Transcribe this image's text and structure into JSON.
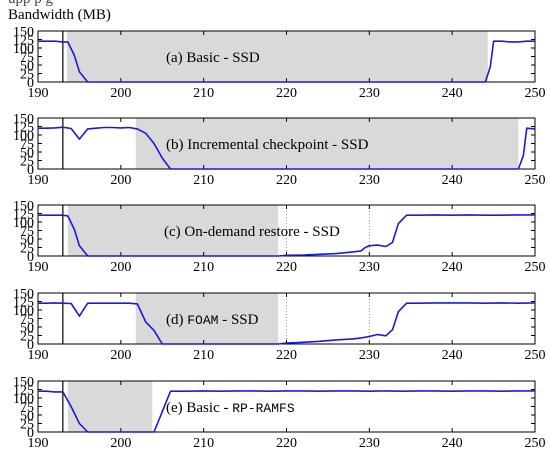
{
  "header_fragment": "upp                       p         g",
  "y_axis_label": "Bandwidth (MB)",
  "colors": {
    "line": "#1a1adf",
    "shade": "#d9d9d9",
    "axis": "#000000",
    "grid": "#999999"
  },
  "chart_data": [
    {
      "type": "line",
      "label_text": "(a) Basic - SSD",
      "label_mono": "",
      "label_suffix": "",
      "xlim": [
        190,
        250
      ],
      "ylim": [
        0,
        150
      ],
      "xticks": [
        190,
        200,
        210,
        220,
        230,
        240,
        250
      ],
      "yticks": [
        0,
        25,
        50,
        75,
        100,
        125,
        150
      ],
      "marker_x": 193,
      "shade": [
        193.5,
        244.3
      ],
      "x": [
        190,
        191,
        192,
        193,
        193.6,
        194.4,
        195,
        196,
        244,
        244.6,
        245,
        246,
        247,
        248,
        249,
        250
      ],
      "y": [
        120,
        120,
        120,
        118,
        118,
        78,
        30,
        0,
        0,
        45,
        120,
        120,
        118,
        118,
        120,
        120
      ]
    },
    {
      "type": "line",
      "label_text": "(b) Incremental checkpoint - SSD",
      "label_mono": "",
      "label_suffix": "",
      "xlim": [
        190,
        250
      ],
      "ylim": [
        0,
        150
      ],
      "xticks": [
        190,
        200,
        210,
        220,
        230,
        240,
        250
      ],
      "yticks": [
        0,
        25,
        50,
        75,
        100,
        125,
        150
      ],
      "marker_x": 193,
      "shade": [
        201.8,
        248.0
      ],
      "x": [
        190,
        191,
        192,
        193,
        194,
        195,
        196,
        197,
        198,
        199,
        200,
        201,
        202,
        203,
        204,
        205,
        206,
        248,
        248.6,
        249,
        250
      ],
      "y": [
        120,
        120,
        121,
        123,
        119,
        88,
        118,
        120,
        122,
        122,
        121,
        122,
        118,
        105,
        75,
        32,
        0,
        0,
        40,
        120,
        118
      ]
    },
    {
      "type": "line",
      "label_text": "(c) On-demand restore - SSD",
      "label_mono": "",
      "label_suffix": "",
      "xlim": [
        190,
        250
      ],
      "ylim": [
        0,
        150
      ],
      "xticks": [
        190,
        200,
        210,
        220,
        230,
        240,
        250
      ],
      "yticks": [
        0,
        25,
        50,
        75,
        100,
        125,
        150
      ],
      "marker_x": 193,
      "shade": [
        193.6,
        219.0
      ],
      "x": [
        190,
        191,
        192,
        193,
        193.6,
        194.4,
        195,
        196,
        219,
        220,
        222,
        224,
        226,
        228,
        229,
        229.5,
        230,
        231,
        232,
        232.8,
        233.5,
        234.5,
        236,
        238,
        240,
        242,
        244,
        246,
        248,
        250
      ],
      "y": [
        120,
        120,
        120,
        120,
        118,
        78,
        30,
        0,
        0,
        2,
        3,
        5,
        7,
        12,
        15,
        25,
        30,
        32,
        28,
        40,
        95,
        120,
        120,
        121,
        120,
        121,
        120,
        120,
        121,
        121
      ],
      "v_grid": [
        220,
        230
      ]
    },
    {
      "type": "line",
      "label_text": "(d) ",
      "label_mono": "FOAM",
      "label_suffix": " - SSD",
      "xlim": [
        190,
        250
      ],
      "ylim": [
        0,
        150
      ],
      "xticks": [
        190,
        200,
        210,
        220,
        230,
        240,
        250
      ],
      "yticks": [
        0,
        25,
        50,
        75,
        100,
        125,
        150
      ],
      "marker_x": 193,
      "shade": [
        201.8,
        219.0
      ],
      "x": [
        190,
        191,
        192,
        193,
        194,
        195,
        196,
        197,
        198,
        199,
        200,
        201,
        202,
        203,
        204,
        205,
        219,
        220,
        222,
        224,
        226,
        228,
        229,
        230,
        231,
        232,
        232.8,
        233.5,
        234.5,
        236,
        238,
        240,
        242,
        244,
        246,
        248,
        250
      ],
      "y": [
        120,
        120,
        121,
        120,
        119,
        82,
        120,
        120,
        120,
        120,
        120,
        120,
        118,
        65,
        40,
        0,
        0,
        3,
        5,
        8,
        12,
        15,
        18,
        22,
        28,
        24,
        42,
        95,
        120,
        120,
        121,
        121,
        121,
        120,
        121,
        120,
        121
      ],
      "v_grid": [
        220,
        230
      ]
    },
    {
      "type": "line",
      "label_text": "(e) Basic - ",
      "label_mono": "RP-RAMFS",
      "label_suffix": "",
      "xlim": [
        190,
        250
      ],
      "ylim": [
        0,
        150
      ],
      "xticks": [
        190,
        200,
        210,
        220,
        230,
        240,
        250
      ],
      "yticks": [
        0,
        25,
        50,
        75,
        100,
        125,
        150
      ],
      "marker_x": 193,
      "shade": [
        193.6,
        203.8
      ],
      "x": [
        190,
        191,
        192,
        193,
        194,
        195,
        196,
        204,
        205,
        206,
        208,
        210,
        212,
        214,
        216,
        218,
        220,
        222,
        224,
        226,
        228,
        230,
        232,
        234,
        236,
        238,
        240,
        242,
        244,
        246,
        248,
        250
      ],
      "y": [
        120,
        120,
        118,
        118,
        75,
        25,
        0,
        0,
        60,
        120,
        120,
        121,
        120,
        121,
        121,
        120,
        121,
        121,
        120,
        121,
        121,
        120,
        121,
        120,
        121,
        121,
        120,
        121,
        121,
        120,
        121,
        121
      ]
    }
  ]
}
